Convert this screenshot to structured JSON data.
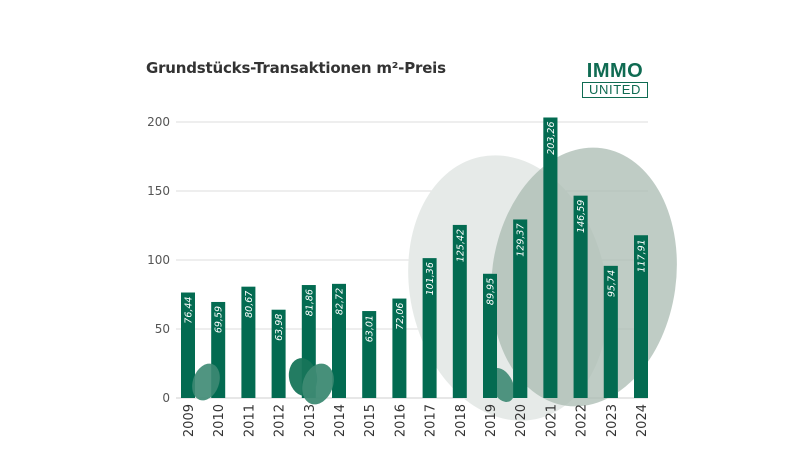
{
  "header": {
    "title": "Grundstücks-Transaktionen m²-Preis"
  },
  "logo": {
    "top": "IMMO",
    "bottom": "UNITED"
  },
  "colors": {
    "bar": "#036b51",
    "blob_light": "#e6eae8",
    "blob_mid": "#a9bbb2",
    "blob_dark": "#3d8a73",
    "grid": "#d9d9d9",
    "text": "#333333"
  },
  "chart_data": {
    "type": "bar",
    "title": "Grundstücks-Transaktionen m²-Preis",
    "xlabel": "",
    "ylabel": "",
    "ylim": [
      0,
      200
    ],
    "yticks": [
      "0",
      "50",
      "100",
      "150",
      "200"
    ],
    "grid": true,
    "categories": [
      "2009",
      "2010",
      "2011",
      "2012",
      "2013",
      "2014",
      "2015",
      "2016",
      "2017",
      "2018",
      "2019",
      "2020",
      "2021",
      "2022",
      "2023",
      "2024"
    ],
    "values": [
      76.44,
      69.59,
      80.67,
      63.98,
      81.86,
      82.72,
      63.01,
      72.06,
      101.36,
      125.42,
      89.95,
      129.37,
      203.26,
      146.59,
      95.74,
      117.91
    ],
    "labels": [
      "76,44",
      "69,59",
      "80,67",
      "63,98",
      "81,86",
      "82,72",
      "63,01",
      "72,06",
      "101,36",
      "125,42",
      "89,95",
      "129,37",
      "203,26",
      "146,59",
      "95,74",
      "117,91"
    ]
  }
}
